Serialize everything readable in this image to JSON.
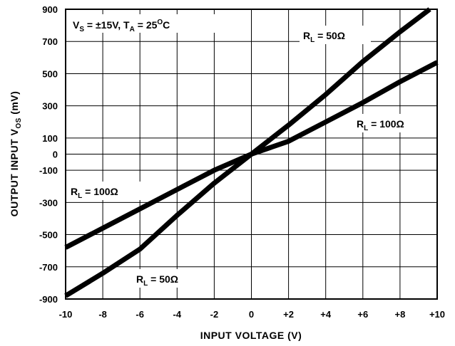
{
  "chart_data": {
    "type": "line",
    "title": "",
    "xlabel": "INPUT VOLTAGE (V)",
    "ylabel": {
      "main": "OUTPUT INPUT V",
      "sub": "OS",
      "unit": " (mV)"
    },
    "xlim": [
      -10,
      10
    ],
    "ylim": [
      -900,
      900
    ],
    "x_ticks": [
      -10,
      -8,
      -6,
      -4,
      -2,
      0,
      2,
      4,
      6,
      8,
      10
    ],
    "x_tick_labels": [
      "-10",
      "-8",
      "-6",
      "-4",
      "-2",
      "0",
      "+2",
      "+4",
      "+6",
      "+8",
      "+10"
    ],
    "y_ticks": [
      -900,
      -700,
      -500,
      -300,
      -100,
      0,
      100,
      300,
      500,
      700,
      900
    ],
    "y_tick_labels": [
      "-900",
      "-700",
      "-500",
      "-300",
      "-100",
      "0",
      "100",
      "300",
      "500",
      "700",
      "900"
    ],
    "grid": true,
    "conditions": {
      "v_main": "V",
      "v_sub": "S",
      "v_value": " = ±15V, T",
      "t_sub": "A",
      "t_value": " = 25",
      "t_deg": "O",
      "t_unit": "C"
    },
    "series": [
      {
        "name": "R_L = 50Ω",
        "x": [
          -10,
          -8,
          -6,
          -4,
          -2,
          0,
          2,
          4,
          6,
          8,
          9.6
        ],
        "y": [
          -880,
          -740,
          -590,
          -380,
          -180,
          0,
          180,
          370,
          575,
          760,
          900
        ]
      },
      {
        "name": "R_L = 100Ω",
        "x": [
          -10,
          -8,
          -6,
          -4,
          -2,
          0,
          2,
          4,
          6,
          8,
          10
        ],
        "y": [
          -580,
          -460,
          -340,
          -220,
          -100,
          0,
          80,
          200,
          320,
          450,
          570
        ]
      }
    ],
    "annotations": [
      {
        "main": "R",
        "sub": "L",
        "value": " = 50Ω"
      },
      {
        "main": "R",
        "sub": "L",
        "value": " = 100Ω"
      },
      {
        "main": "R",
        "sub": "L",
        "value": " = 100Ω"
      },
      {
        "main": "R",
        "sub": "L",
        "value": " = 50Ω"
      }
    ]
  }
}
